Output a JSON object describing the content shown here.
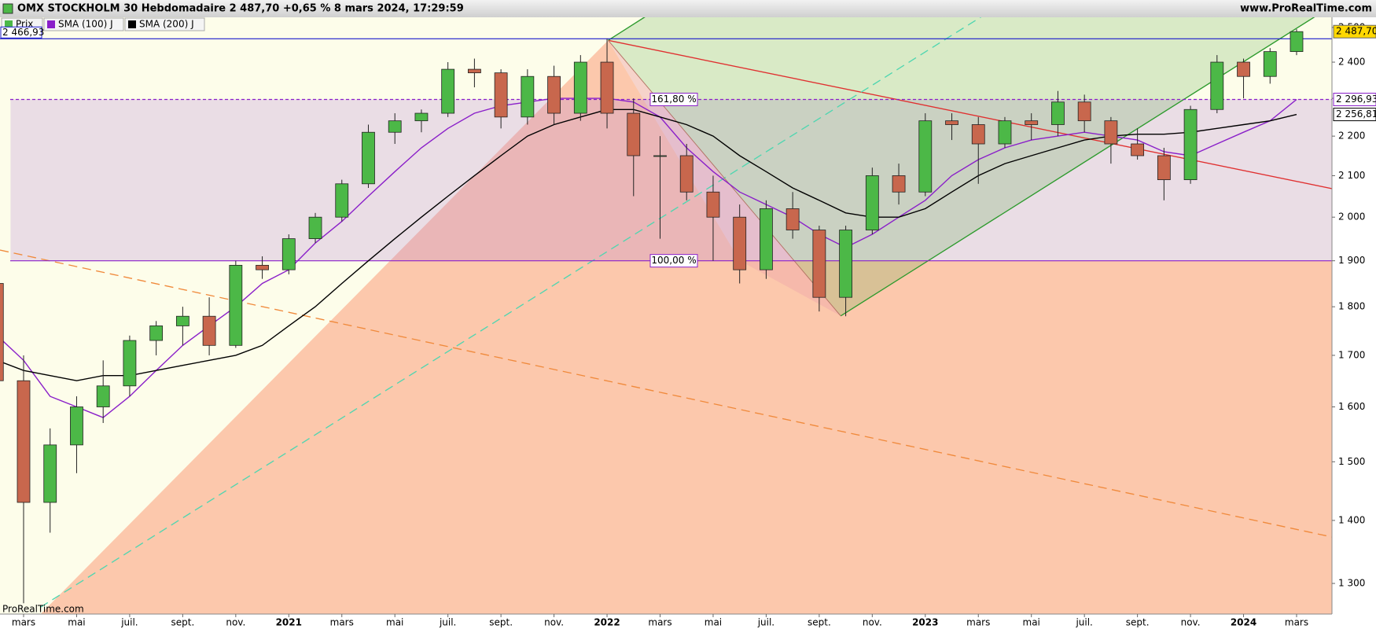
{
  "chart_data": {
    "type": "candlestick",
    "title": "OMX STOCKHOLM 30 Hebdomadaire 2 487,70 +0,65 % 8 mars 2024, 17:29:59",
    "source": "www.ProRealTime.com",
    "footer": "ProRealTime.com",
    "log_scale": true,
    "ylim": [
      1254,
      2530
    ],
    "yticks": [
      {
        "value": 1300,
        "label": "1 300"
      },
      {
        "value": 1400,
        "label": "1 400"
      },
      {
        "value": 1500,
        "label": "1 500"
      },
      {
        "value": 1600,
        "label": "1 600"
      },
      {
        "value": 1700,
        "label": "1 700"
      },
      {
        "value": 1800,
        "label": "1 800"
      },
      {
        "value": 1900,
        "label": "1 900"
      },
      {
        "value": 2000,
        "label": "2 000"
      },
      {
        "value": 2100,
        "label": "2 100"
      },
      {
        "value": 2200,
        "label": "2 200"
      },
      {
        "value": 2300,
        "label": "2 300"
      },
      {
        "value": 2400,
        "label": "2 400"
      },
      {
        "value": 2500,
        "label": "2 500"
      }
    ],
    "categories": [
      null,
      "mars",
      null,
      "mai",
      null,
      "juil.",
      null,
      "sept.",
      null,
      "nov.",
      null,
      "2021",
      null,
      "mars",
      null,
      "mai",
      null,
      "juil.",
      null,
      "sept.",
      null,
      "nov.",
      null,
      "2022",
      null,
      "mars",
      null,
      "mai",
      null,
      "juil.",
      null,
      "sept.",
      null,
      "nov.",
      null,
      "2023",
      null,
      "mars",
      null,
      "mai",
      null,
      "juil.",
      null,
      "sept.",
      null,
      "nov.",
      null,
      "2024",
      null,
      "mars"
    ],
    "series": [
      {
        "name": "Prix",
        "up_color": "#4cb847",
        "down_color": "#c8674d",
        "label_color": "#ffd800",
        "last_label": "2 487,70",
        "open": [
          1850,
          1650,
          1430,
          1530,
          1600,
          1640,
          1730,
          1760,
          1780,
          1720,
          1890,
          1880,
          1950,
          2000,
          2080,
          2210,
          2240,
          2260,
          2380,
          2370,
          2250,
          2360,
          2260,
          2400,
          2260,
          2150,
          2150,
          2060,
          2000,
          1880,
          2020,
          1970,
          1820,
          1970,
          2100,
          2060,
          2240,
          2230,
          2180,
          2240,
          2230,
          2290,
          2240,
          2180,
          2150,
          2090,
          2270,
          2400,
          2360,
          2430
        ],
        "high": [
          1905,
          1700,
          1560,
          1620,
          1690,
          1740,
          1770,
          1800,
          1820,
          1900,
          1910,
          1960,
          2010,
          2090,
          2230,
          2260,
          2270,
          2400,
          2410,
          2380,
          2380,
          2390,
          2420,
          2466.93,
          2300,
          2200,
          2180,
          2100,
          2030,
          2040,
          2060,
          1980,
          1980,
          2120,
          2130,
          2260,
          2260,
          2250,
          2250,
          2260,
          2320,
          2310,
          2250,
          2220,
          2170,
          2280,
          2420,
          2410,
          2440,
          2495
        ],
        "low": [
          1620,
          1270,
          1380,
          1480,
          1570,
          1620,
          1700,
          1720,
          1700,
          1715,
          1860,
          1870,
          1940,
          1990,
          2070,
          2180,
          2210,
          2250,
          2330,
          2220,
          2230,
          2230,
          2240,
          2220,
          2050,
          1950,
          2040,
          1900,
          1850,
          1860,
          1950,
          1790,
          1780,
          1960,
          2030,
          2050,
          2190,
          2080,
          2170,
          2190,
          2200,
          2210,
          2130,
          2140,
          2040,
          2080,
          2260,
          2300,
          2340,
          2420
        ],
        "close": [
          1650,
          1430,
          1530,
          1600,
          1640,
          1730,
          1760,
          1780,
          1720,
          1890,
          1880,
          1950,
          2000,
          2080,
          2210,
          2240,
          2260,
          2380,
          2370,
          2250,
          2360,
          2260,
          2400,
          2260,
          2150,
          2150,
          2060,
          2000,
          1880,
          2020,
          1970,
          1820,
          1970,
          2100,
          2060,
          2240,
          2230,
          2180,
          2240,
          2230,
          2290,
          2240,
          2180,
          2150,
          2090,
          2270,
          2400,
          2360,
          2430,
          2487.7
        ]
      },
      {
        "name": "SMA (100) J",
        "color": "#8a1fc9",
        "last_label": "2 296,93",
        "values": [
          1740,
          1690,
          1620,
          1600,
          1580,
          1620,
          1670,
          1720,
          1760,
          1800,
          1850,
          1880,
          1940,
          1990,
          2050,
          2110,
          2170,
          2220,
          2260,
          2280,
          2290,
          2300,
          2300,
          2300,
          2290,
          2250,
          2170,
          2110,
          2060,
          2030,
          2000,
          1960,
          1930,
          1960,
          2000,
          2040,
          2100,
          2140,
          2170,
          2190,
          2200,
          2210,
          2200,
          2190,
          2160,
          2150,
          2180,
          2210,
          2240,
          2296.93
        ]
      },
      {
        "name": "SMA (200) J",
        "color": "#000000",
        "last_label": "2 256,81",
        "values": [
          1690,
          1670,
          1660,
          1650,
          1660,
          1660,
          1670,
          1680,
          1690,
          1700,
          1720,
          1760,
          1800,
          1850,
          1900,
          1950,
          2000,
          2050,
          2100,
          2150,
          2200,
          2230,
          2250,
          2270,
          2270,
          2250,
          2230,
          2200,
          2150,
          2110,
          2070,
          2040,
          2010,
          2000,
          2000,
          2020,
          2060,
          2100,
          2130,
          2150,
          2170,
          2190,
          2200,
          2205,
          2205,
          2210,
          2220,
          2230,
          2240,
          2256.81
        ]
      }
    ],
    "levels": [
      {
        "value": 2466.93,
        "label": "2 466,93",
        "color": "#1a1acc"
      }
    ],
    "fibonacci": {
      "color": "#8a1fc9",
      "levels": [
        {
          "value": 1900,
          "label": "100,00 %"
        },
        {
          "value": 2297,
          "label": "161,80 %"
        }
      ]
    }
  }
}
